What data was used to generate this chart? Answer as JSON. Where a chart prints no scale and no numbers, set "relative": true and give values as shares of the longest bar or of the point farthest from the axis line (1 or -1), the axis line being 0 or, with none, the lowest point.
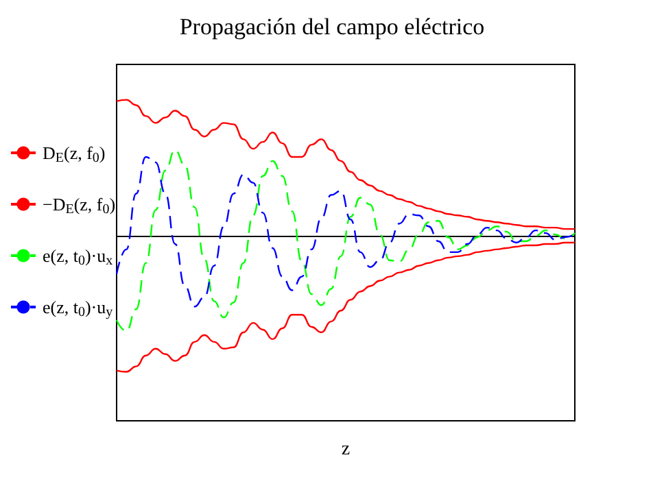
{
  "chart_data": {
    "type": "line",
    "title": "Propagación del campo eléctrico",
    "xlabel": "z",
    "relative": true,
    "grid": false,
    "legend": "left",
    "categories": [
      null,
      null,
      null,
      null,
      null,
      null,
      null,
      null,
      null,
      null,
      null,
      null,
      null,
      null,
      null,
      null,
      null,
      null,
      null,
      null,
      null,
      null,
      null,
      null,
      null,
      null,
      null,
      null,
      null,
      null,
      null,
      null,
      null,
      null,
      null,
      null,
      null,
      null,
      null,
      null,
      null,
      null,
      null,
      null,
      null,
      null,
      null,
      null
    ],
    "series": [
      {
        "name": "D$_{E}$(z, f$_{0}$)",
        "color": "#ff0000",
        "line_style": "solid",
        "values": [
          0.99,
          1.0,
          0.96,
          0.88,
          0.83,
          0.87,
          0.92,
          0.88,
          0.78,
          0.73,
          0.78,
          0.83,
          0.82,
          0.71,
          0.64,
          0.69,
          0.76,
          0.68,
          0.58,
          0.58,
          0.67,
          0.71,
          0.63,
          0.55,
          0.47,
          0.41,
          0.37,
          0.33,
          0.3,
          0.27,
          0.25,
          0.22,
          0.2,
          0.18,
          0.16,
          0.15,
          0.14,
          0.12,
          0.11,
          0.1,
          0.09,
          0.08,
          0.07,
          0.07,
          0.06,
          0.06,
          0.05,
          0.05
        ]
      },
      {
        "name": "−D$_{E}$(z, f$_{0}$)",
        "color": "#ff0000",
        "line_style": "solid",
        "values": [
          -0.99,
          -1.0,
          -0.96,
          -0.88,
          -0.83,
          -0.87,
          -0.92,
          -0.88,
          -0.78,
          -0.73,
          -0.78,
          -0.83,
          -0.82,
          -0.71,
          -0.64,
          -0.69,
          -0.76,
          -0.68,
          -0.58,
          -0.58,
          -0.67,
          -0.71,
          -0.63,
          -0.55,
          -0.47,
          -0.41,
          -0.37,
          -0.33,
          -0.3,
          -0.27,
          -0.25,
          -0.22,
          -0.2,
          -0.18,
          -0.16,
          -0.15,
          -0.14,
          -0.12,
          -0.11,
          -0.1,
          -0.09,
          -0.08,
          -0.07,
          -0.07,
          -0.06,
          -0.06,
          -0.05,
          -0.05
        ]
      },
      {
        "name": "e(z, t$_{0}$)·u$_{x}$",
        "color": "#00ff00",
        "line_style": "dashed",
        "values": [
          -0.62,
          -0.7,
          -0.54,
          -0.2,
          0.19,
          0.48,
          0.63,
          0.52,
          0.21,
          -0.17,
          -0.48,
          -0.6,
          -0.49,
          -0.2,
          0.15,
          0.44,
          0.55,
          0.44,
          0.18,
          -0.19,
          -0.43,
          -0.51,
          -0.39,
          -0.15,
          0.14,
          0.28,
          0.23,
          0.01,
          -0.18,
          -0.19,
          -0.1,
          0.01,
          0.1,
          0.11,
          -0.01,
          -0.1,
          -0.07,
          -0.01,
          0.04,
          0.07,
          0.03,
          -0.04,
          -0.04,
          0.0,
          0.04,
          0.01,
          -0.02,
          0.02
        ]
      },
      {
        "name": "e(z, t$_{0}$)·u$_{y}$",
        "color": "#0000ff",
        "line_style": "dashed",
        "values": [
          -0.28,
          -0.1,
          0.31,
          0.58,
          0.54,
          0.31,
          -0.06,
          -0.37,
          -0.52,
          -0.45,
          -0.22,
          0.07,
          0.31,
          0.45,
          0.39,
          0.17,
          -0.09,
          -0.3,
          -0.4,
          -0.3,
          -0.1,
          0.13,
          0.3,
          0.33,
          0.12,
          -0.12,
          -0.23,
          -0.18,
          -0.05,
          0.09,
          0.16,
          0.15,
          0.07,
          -0.04,
          -0.12,
          -0.12,
          -0.06,
          0.01,
          0.06,
          0.04,
          -0.02,
          -0.05,
          -0.01,
          0.04,
          0.02,
          -0.03,
          -0.01,
          0.01
        ]
      }
    ]
  }
}
